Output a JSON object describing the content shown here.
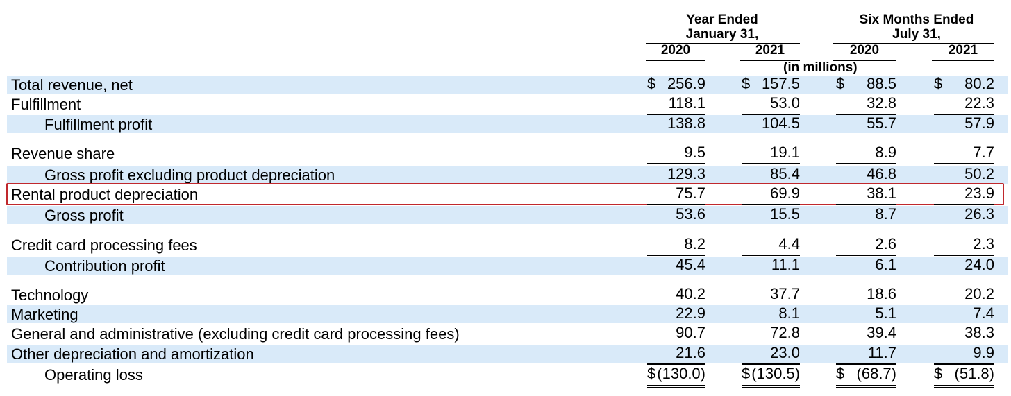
{
  "header": {
    "group1": "Year Ended\nJanuary 31,",
    "group1_line1": "Year Ended",
    "group1_line2": "January 31,",
    "group2_line1": "Six Months Ended",
    "group2_line2": "July 31,",
    "years": [
      "2020",
      "2021",
      "2020",
      "2021"
    ],
    "units": "(in millions)"
  },
  "rows": [
    {
      "label": "Total revenue, net",
      "values": [
        "256.9",
        "157.5",
        "88.5",
        "80.2"
      ],
      "dollar": true
    },
    {
      "label": "Fulfillment",
      "values": [
        "118.1",
        "53.0",
        "32.8",
        "22.3"
      ]
    },
    {
      "label": "Fulfillment profit",
      "values": [
        "138.8",
        "104.5",
        "55.7",
        "57.9"
      ]
    },
    {
      "label": "Revenue share",
      "values": [
        "9.5",
        "19.1",
        "8.9",
        "7.7"
      ]
    },
    {
      "label": "Gross profit excluding product depreciation",
      "values": [
        "129.3",
        "85.4",
        "46.8",
        "50.2"
      ]
    },
    {
      "label": "Rental product depreciation",
      "values": [
        "75.7",
        "69.9",
        "38.1",
        "23.9"
      ]
    },
    {
      "label": "Gross profit",
      "values": [
        "53.6",
        "15.5",
        "8.7",
        "26.3"
      ]
    },
    {
      "label": "Credit card processing fees",
      "values": [
        "8.2",
        "4.4",
        "2.6",
        "2.3"
      ]
    },
    {
      "label": "Contribution profit",
      "values": [
        "45.4",
        "11.1",
        "6.1",
        "24.0"
      ]
    },
    {
      "label": "Technology",
      "values": [
        "40.2",
        "37.7",
        "18.6",
        "20.2"
      ]
    },
    {
      "label": "Marketing",
      "values": [
        "22.9",
        "8.1",
        "5.1",
        "7.4"
      ]
    },
    {
      "label": "General and administrative (excluding credit card processing fees)",
      "values": [
        "90.7",
        "72.8",
        "39.4",
        "38.3"
      ]
    },
    {
      "label": "Other depreciation and amortization",
      "values": [
        "21.6",
        "23.0",
        "11.7",
        "9.9"
      ]
    },
    {
      "label": "Operating loss",
      "values": [
        "(130.0)",
        "(130.5)",
        "(68.7)",
        "(51.8)"
      ],
      "dollar": true
    }
  ],
  "currency_symbol": "$",
  "highlighted_row": "Rental product depreciation"
}
